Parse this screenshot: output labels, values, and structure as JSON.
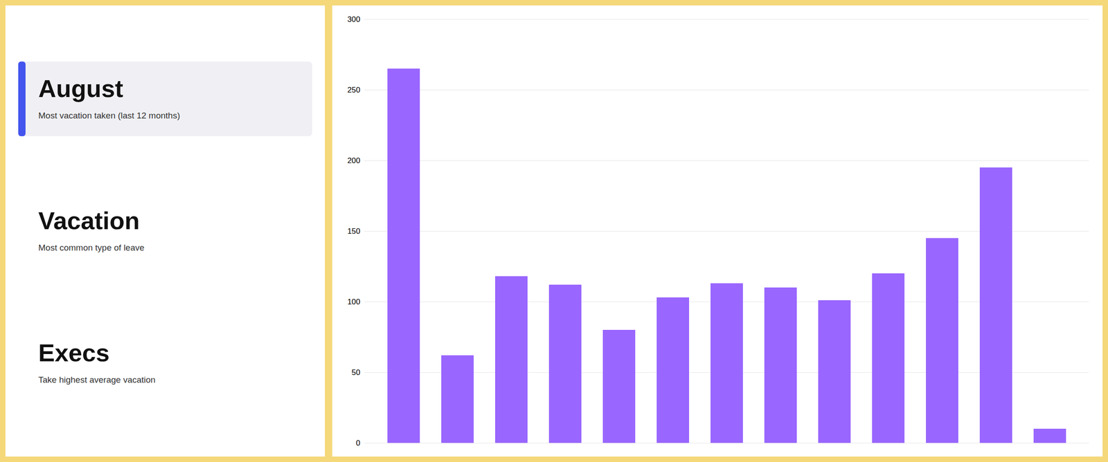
{
  "chart_data": {
    "type": "bar",
    "categories": [
      null,
      null,
      null,
      null,
      null,
      null,
      null,
      null,
      null,
      null,
      null,
      null,
      null
    ],
    "values": [
      265,
      62,
      118,
      112,
      80,
      103,
      113,
      110,
      101,
      120,
      145,
      195,
      10
    ],
    "color": "#9966FF",
    "ylim": [
      0,
      300
    ],
    "yticks": [
      0,
      50,
      100,
      150,
      200,
      250,
      300
    ],
    "grid": true,
    "tick_labels": "y",
    "annotations": [
      {
        "title": "August",
        "subtitle": "Most vacation taken (last 12 months)"
      },
      {
        "title": "Vacation",
        "subtitle": "Most common type of leave"
      },
      {
        "title": "Execs",
        "subtitle": "Take highest average vacation"
      }
    ]
  }
}
